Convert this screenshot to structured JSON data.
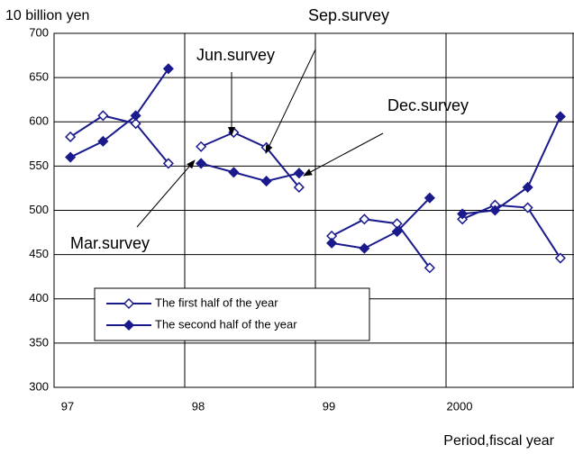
{
  "chart_data": {
    "type": "line",
    "y_label": "10 billion yen",
    "x_label": "Period,fiscal year",
    "categories": [
      "97",
      "98",
      "99",
      "2000"
    ],
    "series": [
      {
        "name": "The first half of the year",
        "color": "#1a1a8c",
        "marker": "open-diamond",
        "values": [
          [
            583,
            607,
            598,
            553
          ],
          [
            572,
            588,
            571,
            526
          ],
          [
            471,
            490,
            485,
            435
          ],
          [
            490,
            506,
            503,
            446
          ]
        ]
      },
      {
        "name": "The second half of the year",
        "color": "#1a1a8c",
        "marker": "filled-diamond",
        "values": [
          [
            560,
            578,
            607,
            660
          ],
          [
            553,
            543,
            533,
            542
          ],
          [
            463,
            457,
            476,
            514
          ],
          [
            496,
            500,
            526,
            606
          ]
        ]
      }
    ],
    "ylim": [
      300,
      700
    ],
    "yticks": [
      300,
      350,
      400,
      450,
      500,
      550,
      600,
      650,
      700
    ],
    "grid": true,
    "annotations": [
      "Mar.survey",
      "Jun.survey",
      "Sep.survey",
      "Dec.survey"
    ]
  }
}
